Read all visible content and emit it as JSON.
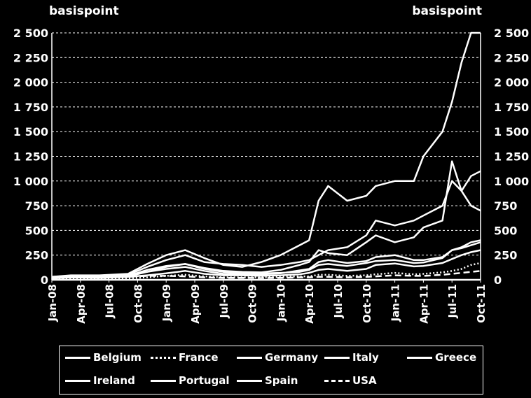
{
  "chart_data": {
    "type": "line",
    "ylabel_left": "basispoint",
    "ylabel_right": "basispoint",
    "ylim": [
      0,
      2500
    ],
    "yticks": [
      0,
      250,
      500,
      750,
      1000,
      1250,
      1500,
      1750,
      2000,
      2250,
      2500
    ],
    "ytick_labels": [
      "0",
      "250",
      "500",
      "750",
      "1 000",
      "1 250",
      "1 500",
      "1 750",
      "2 000",
      "2 250",
      "2 500"
    ],
    "xticks": [
      "Jan-08",
      "Apr-08",
      "Jul-08",
      "Oct-08",
      "Jan-09",
      "Apr-09",
      "Jul-09",
      "Oct-09",
      "Jan-10",
      "Apr-10",
      "Jul-10",
      "Oct-10",
      "Jan-11",
      "Apr-11",
      "Jul-11",
      "Oct-11"
    ],
    "x": [
      "2008-01",
      "2008-03",
      "2008-06",
      "2008-09",
      "2008-11",
      "2009-01",
      "2009-03",
      "2009-05",
      "2009-07",
      "2009-09",
      "2009-11",
      "2010-01",
      "2010-03",
      "2010-04",
      "2010-05",
      "2010-06",
      "2010-08",
      "2010-10",
      "2010-11",
      "2011-01",
      "2011-03",
      "2011-04",
      "2011-06",
      "2011-07",
      "2011-08",
      "2011-09",
      "2011-10"
    ],
    "grid": true,
    "legend_position": "bottom",
    "series": [
      {
        "name": "Belgium",
        "style": "solid",
        "values": [
          15,
          25,
          20,
          30,
          45,
          65,
          90,
          60,
          45,
          45,
          40,
          45,
          55,
          70,
          100,
          110,
          90,
          110,
          150,
          165,
          135,
          140,
          170,
          210,
          250,
          280,
          300
        ]
      },
      {
        "name": "France",
        "style": "dotted",
        "values": [
          10,
          15,
          12,
          15,
          25,
          40,
          50,
          35,
          25,
          25,
          25,
          30,
          35,
          35,
          50,
          50,
          40,
          45,
          55,
          70,
          55,
          60,
          75,
          90,
          110,
          150,
          170
        ]
      },
      {
        "name": "Germany",
        "style": "solid",
        "values": [
          0,
          0,
          0,
          0,
          0,
          0,
          0,
          0,
          0,
          0,
          0,
          0,
          0,
          0,
          0,
          0,
          0,
          0,
          0,
          0,
          0,
          0,
          0,
          0,
          0,
          0,
          0
        ]
      },
      {
        "name": "Italy",
        "style": "solid",
        "values": [
          30,
          40,
          35,
          50,
          80,
          130,
          160,
          110,
          80,
          70,
          65,
          70,
          80,
          100,
          150,
          160,
          140,
          170,
          190,
          200,
          170,
          175,
          220,
          300,
          330,
          380,
          400
        ]
      },
      {
        "name": "Greece",
        "style": "solid",
        "values": [
          30,
          45,
          45,
          60,
          160,
          250,
          300,
          220,
          150,
          130,
          180,
          250,
          350,
          400,
          800,
          950,
          800,
          850,
          950,
          1000,
          1000,
          1250,
          1500,
          1800,
          2200,
          2500,
          2500
        ]
      },
      {
        "name": "Ireland",
        "style": "solid",
        "values": [
          20,
          35,
          40,
          50,
          130,
          200,
          250,
          180,
          160,
          150,
          130,
          150,
          180,
          200,
          250,
          300,
          330,
          450,
          600,
          550,
          600,
          650,
          750,
          1000,
          900,
          750,
          700
        ]
      },
      {
        "name": "Portugal",
        "style": "solid",
        "values": [
          20,
          35,
          35,
          40,
          100,
          140,
          160,
          120,
          90,
          80,
          75,
          100,
          150,
          180,
          300,
          270,
          250,
          380,
          450,
          380,
          430,
          530,
          600,
          1200,
          900,
          1050,
          1100
        ]
      },
      {
        "name": "Spain",
        "style": "solid",
        "values": [
          15,
          25,
          25,
          35,
          80,
          110,
          130,
          90,
          60,
          60,
          55,
          65,
          95,
          110,
          180,
          200,
          170,
          190,
          230,
          250,
          200,
          200,
          230,
          300,
          320,
          350,
          380
        ]
      },
      {
        "name": "USA",
        "style": "dashed",
        "values": [
          20,
          25,
          20,
          30,
          40,
          40,
          35,
          25,
          20,
          20,
          18,
          20,
          25,
          25,
          30,
          30,
          25,
          30,
          35,
          45,
          40,
          40,
          50,
          60,
          70,
          80,
          90
        ]
      }
    ]
  }
}
